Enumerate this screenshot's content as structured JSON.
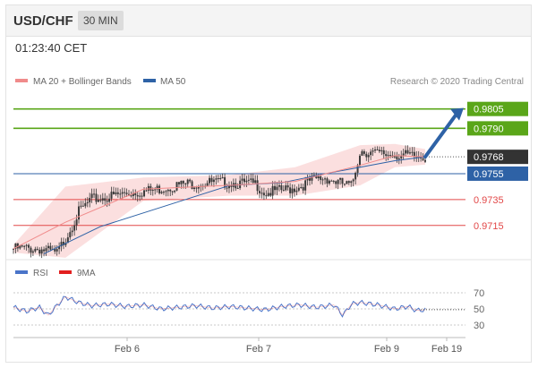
{
  "header": {
    "pair": "USD/CHF",
    "timeframe": "30 MIN"
  },
  "timestamp": "01:23:40 CET",
  "credit": "Research © 2020 Trading Central",
  "colors": {
    "bollinger": "#f08b8b",
    "ma50": "#2e62a6",
    "target": "#5aa619",
    "current": "#333333",
    "support": "#e24848",
    "rsi": "#4a74c9",
    "rsi_ma": "#e21f1f",
    "candle": "#3a3a3a"
  },
  "chart_data": [
    {
      "type": "candlestick",
      "title": "USD/CHF",
      "legend": [
        {
          "name": "MA 20 + Bollinger Bands",
          "color": "#f08b8b"
        },
        {
          "name": "MA 50",
          "color": "#2e62a6"
        }
      ],
      "ylim": [
        0.9692,
        0.982
      ],
      "levels": [
        {
          "value": "0.9805",
          "kind": "target"
        },
        {
          "value": "0.9790",
          "kind": "target"
        },
        {
          "value": "0.9768",
          "kind": "current"
        },
        {
          "value": "0.9755",
          "kind": "ma50"
        },
        {
          "value": "0.9735",
          "kind": "support"
        },
        {
          "value": "0.9715",
          "kind": "support"
        }
      ],
      "price_path": [
        [
          0,
          0.9697
        ],
        [
          6,
          0.9697
        ],
        [
          10,
          0.9693
        ],
        [
          12,
          0.9705
        ],
        [
          15,
          0.9725
        ],
        [
          18,
          0.9735
        ],
        [
          22,
          0.9737
        ],
        [
          26,
          0.974
        ],
        [
          32,
          0.9742
        ],
        [
          36,
          0.9745
        ],
        [
          40,
          0.9747
        ],
        [
          44,
          0.9748
        ],
        [
          48,
          0.9748
        ],
        [
          51,
          0.9748
        ],
        [
          53,
          0.9747
        ],
        [
          56,
          0.9747
        ],
        [
          58,
          0.974
        ],
        [
          62,
          0.9742
        ],
        [
          66,
          0.9745
        ],
        [
          69,
          0.975
        ],
        [
          72,
          0.9752
        ],
        [
          75,
          0.9748
        ],
        [
          78,
          0.9745
        ],
        [
          80,
          0.9773
        ],
        [
          84,
          0.977
        ],
        [
          88,
          0.977
        ],
        [
          92,
          0.9768
        ],
        [
          95,
          0.9768
        ]
      ],
      "ma50_path": [
        [
          7,
          0.9693
        ],
        [
          20,
          0.9714
        ],
        [
          35,
          0.973
        ],
        [
          50,
          0.9746
        ],
        [
          62,
          0.9748
        ],
        [
          72,
          0.9755
        ],
        [
          80,
          0.976
        ],
        [
          88,
          0.9765
        ],
        [
          95,
          0.9768
        ]
      ],
      "band_upper": [
        [
          0,
          0.97
        ],
        [
          12,
          0.9745
        ],
        [
          30,
          0.9752
        ],
        [
          50,
          0.9754
        ],
        [
          65,
          0.976
        ],
        [
          80,
          0.9777
        ],
        [
          88,
          0.9778
        ],
        [
          95,
          0.9774
        ]
      ],
      "band_lower": [
        [
          0,
          0.9694
        ],
        [
          12,
          0.969
        ],
        [
          30,
          0.9734
        ],
        [
          50,
          0.9738
        ],
        [
          65,
          0.9738
        ],
        [
          80,
          0.9746
        ],
        [
          88,
          0.976
        ],
        [
          95,
          0.9762
        ]
      ],
      "forecast_arrow": {
        "from": 0.9768,
        "to": 0.9805
      }
    },
    {
      "type": "line",
      "title": "RSI",
      "series": [
        {
          "name": "RSI",
          "color": "#4a74c9"
        },
        {
          "name": "9MA",
          "color": "#e21f1f"
        }
      ],
      "ylim": [
        20,
        80
      ],
      "yticks": [
        "70",
        "50",
        "30"
      ],
      "rsi_path": [
        [
          0,
          52
        ],
        [
          3,
          47
        ],
        [
          6,
          52
        ],
        [
          8,
          42
        ],
        [
          10,
          54
        ],
        [
          12,
          65
        ],
        [
          15,
          58
        ],
        [
          18,
          54
        ],
        [
          22,
          56
        ],
        [
          26,
          53
        ],
        [
          30,
          55
        ],
        [
          34,
          50
        ],
        [
          38,
          52
        ],
        [
          42,
          54
        ],
        [
          46,
          51
        ],
        [
          50,
          53
        ],
        [
          54,
          51
        ],
        [
          58,
          49
        ],
        [
          62,
          53
        ],
        [
          66,
          55
        ],
        [
          70,
          52
        ],
        [
          74,
          55
        ],
        [
          76,
          42
        ],
        [
          78,
          56
        ],
        [
          80,
          58
        ],
        [
          84,
          55
        ],
        [
          88,
          50
        ],
        [
          91,
          53
        ],
        [
          93,
          48
        ],
        [
          95,
          49
        ]
      ]
    }
  ],
  "x_axis": {
    "ticks": [
      "Feb 6",
      "Feb 7",
      "Feb 9",
      "Feb 19"
    ]
  }
}
